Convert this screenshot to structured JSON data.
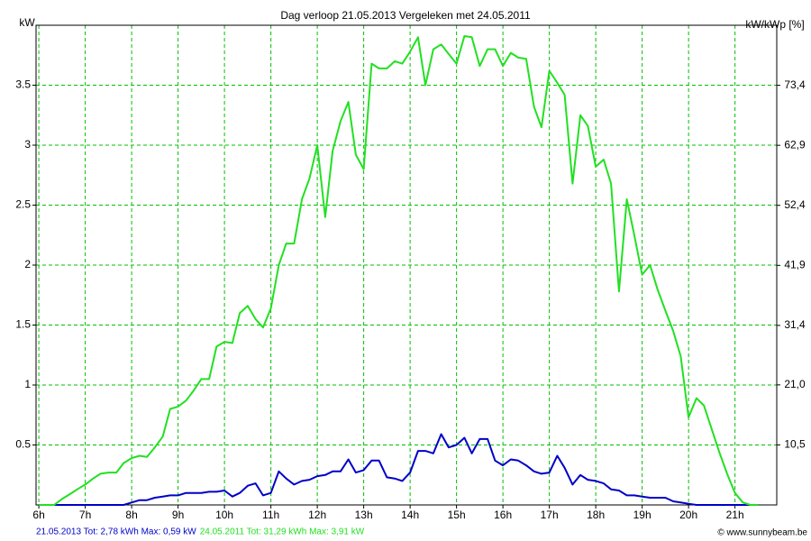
{
  "chart_data": {
    "type": "line",
    "title": "Dag  verloop 21.05.2013   Vergeleken met 24.05.2011",
    "y_label": "kW",
    "y2_label": "kW/kWp [%]",
    "credit": "© www.sunnybeam.be",
    "grid": true,
    "xlim": [
      5.94,
      21.9
    ],
    "xticks": [
      {
        "value": 6,
        "label": "6h"
      },
      {
        "value": 7,
        "label": "7h"
      },
      {
        "value": 8,
        "label": "8h"
      },
      {
        "value": 9,
        "label": "9h"
      },
      {
        "value": 10,
        "label": "10h"
      },
      {
        "value": 11,
        "label": "11h"
      },
      {
        "value": 12,
        "label": "12h"
      },
      {
        "value": 13,
        "label": "13h"
      },
      {
        "value": 14,
        "label": "14h"
      },
      {
        "value": 15,
        "label": "15h"
      },
      {
        "value": 16,
        "label": "16h"
      },
      {
        "value": 17,
        "label": "17h"
      },
      {
        "value": 18,
        "label": "18h"
      },
      {
        "value": 19,
        "label": "19h"
      },
      {
        "value": 20,
        "label": "20h"
      },
      {
        "value": 21,
        "label": "21h"
      }
    ],
    "ylim": [
      0,
      4
    ],
    "yticks": [
      0.5,
      1,
      1.5,
      2,
      2.5,
      3,
      3.5
    ],
    "y2lim": [
      0,
      83.9
    ],
    "y2ticks": [
      {
        "value": 10.5,
        "label": "10,5"
      },
      {
        "value": 21.0,
        "label": "21,0"
      },
      {
        "value": 31.4,
        "label": "31,4"
      },
      {
        "value": 41.9,
        "label": "41,9"
      },
      {
        "value": 52.4,
        "label": "52,4"
      },
      {
        "value": 62.9,
        "label": "62,9"
      },
      {
        "value": 73.4,
        "label": "73,4"
      }
    ],
    "x": [
      6,
      6.17,
      6.33,
      6.5,
      6.67,
      6.83,
      7,
      7.17,
      7.33,
      7.5,
      7.67,
      7.83,
      8,
      8.17,
      8.33,
      8.5,
      8.67,
      8.83,
      9,
      9.17,
      9.33,
      9.5,
      9.67,
      9.83,
      10,
      10.17,
      10.33,
      10.5,
      10.67,
      10.83,
      11,
      11.17,
      11.33,
      11.5,
      11.67,
      11.83,
      12,
      12.17,
      12.33,
      12.5,
      12.67,
      12.83,
      13,
      13.17,
      13.33,
      13.5,
      13.67,
      13.83,
      14,
      14.17,
      14.33,
      14.5,
      14.67,
      14.83,
      15,
      15.17,
      15.33,
      15.5,
      15.67,
      15.83,
      16,
      16.17,
      16.33,
      16.5,
      16.67,
      16.83,
      17,
      17.17,
      17.33,
      17.5,
      17.67,
      17.83,
      18,
      18.17,
      18.33,
      18.5,
      18.67,
      18.83,
      19,
      19.17,
      19.33,
      19.5,
      19.67,
      19.83,
      20,
      20.17,
      20.33,
      20.5,
      20.67,
      20.83,
      21,
      21.17,
      21.33,
      21.5
    ],
    "series": [
      {
        "name": "21.05.2013 Tot: 2,78 kWh Max: 0,59 kW",
        "color": "#0000c8",
        "values": [
          0,
          0,
          0,
          0,
          0,
          0,
          0,
          0,
          0,
          0,
          0,
          0,
          0.02,
          0.04,
          0.04,
          0.06,
          0.07,
          0.08,
          0.08,
          0.1,
          0.1,
          0.1,
          0.11,
          0.11,
          0.12,
          0.07,
          0.1,
          0.16,
          0.18,
          0.08,
          0.1,
          0.28,
          0.22,
          0.17,
          0.2,
          0.21,
          0.24,
          0.25,
          0.28,
          0.28,
          0.38,
          0.27,
          0.29,
          0.37,
          0.37,
          0.23,
          0.22,
          0.2,
          0.27,
          0.45,
          0.45,
          0.43,
          0.59,
          0.48,
          0.5,
          0.56,
          0.43,
          0.55,
          0.55,
          0.37,
          0.33,
          0.38,
          0.37,
          0.33,
          0.28,
          0.26,
          0.27,
          0.41,
          0.31,
          0.17,
          0.25,
          0.21,
          0.2,
          0.18,
          0.13,
          0.12,
          0.08,
          0.08,
          0.07,
          0.06,
          0.06,
          0.06,
          0.03,
          0.02,
          0.01,
          0,
          0,
          0,
          0,
          0,
          0,
          0,
          0,
          0
        ]
      },
      {
        "name": "24.05.2011 Tot: 31,29 kWh Max: 3,91 kW",
        "color": "#22e022",
        "values": [
          0,
          0,
          0,
          0.05,
          0.09,
          0.13,
          0.17,
          0.22,
          0.26,
          0.27,
          0.27,
          0.35,
          0.39,
          0.41,
          0.4,
          0.48,
          0.57,
          0.8,
          0.82,
          0.87,
          0.95,
          1.05,
          1.05,
          1.32,
          1.36,
          1.35,
          1.6,
          1.66,
          1.55,
          1.48,
          1.64,
          2.0,
          2.18,
          2.18,
          2.55,
          2.72,
          3.0,
          2.4,
          2.95,
          3.2,
          3.36,
          2.92,
          2.8,
          3.68,
          3.64,
          3.64,
          3.7,
          3.68,
          3.78,
          3.9,
          3.5,
          3.8,
          3.84,
          3.76,
          3.68,
          3.91,
          3.9,
          3.66,
          3.8,
          3.8,
          3.66,
          3.77,
          3.73,
          3.72,
          3.32,
          3.15,
          3.62,
          3.52,
          3.42,
          2.68,
          3.25,
          3.16,
          2.82,
          2.88,
          2.68,
          1.78,
          2.55,
          2.25,
          1.92,
          2.0,
          1.8,
          1.62,
          1.45,
          1.24,
          0.73,
          0.89,
          0.83,
          0.63,
          0.43,
          0.26,
          0.1,
          0.02,
          0,
          0
        ]
      }
    ]
  }
}
